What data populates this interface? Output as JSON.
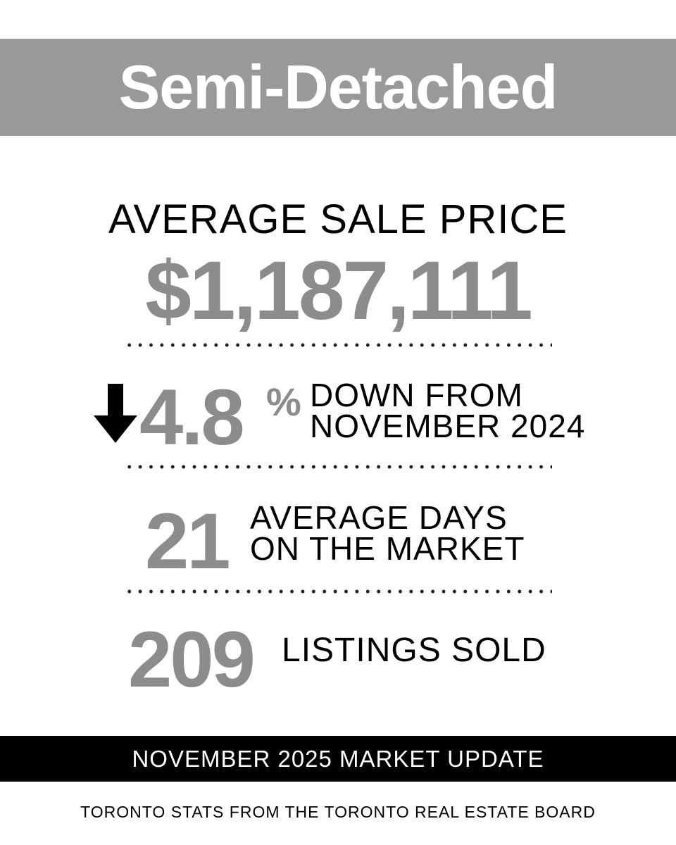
{
  "header": {
    "title": "Semi-Detached",
    "background_color": "#999999"
  },
  "price": {
    "label": "AVERAGE SALE PRICE",
    "value": "$1,187,111"
  },
  "change": {
    "direction_icon": "arrow-down-icon",
    "value": "4.8",
    "unit": "%",
    "line1": "DOWN FROM",
    "line2": "NOVEMBER 2024"
  },
  "days": {
    "value": "21",
    "line1": "AVERAGE DAYS",
    "line2": "ON THE MARKET"
  },
  "sold": {
    "value": "209",
    "label": "LISTINGS SOLD"
  },
  "footer": {
    "banner": "NOVEMBER 2025 MARKET UPDATE",
    "source": "TORONTO STATS FROM THE TORONTO REAL ESTATE BOARD"
  },
  "colors": {
    "accent_gray": "#8c8c8c",
    "text": "#000000",
    "banner": "#000000"
  }
}
